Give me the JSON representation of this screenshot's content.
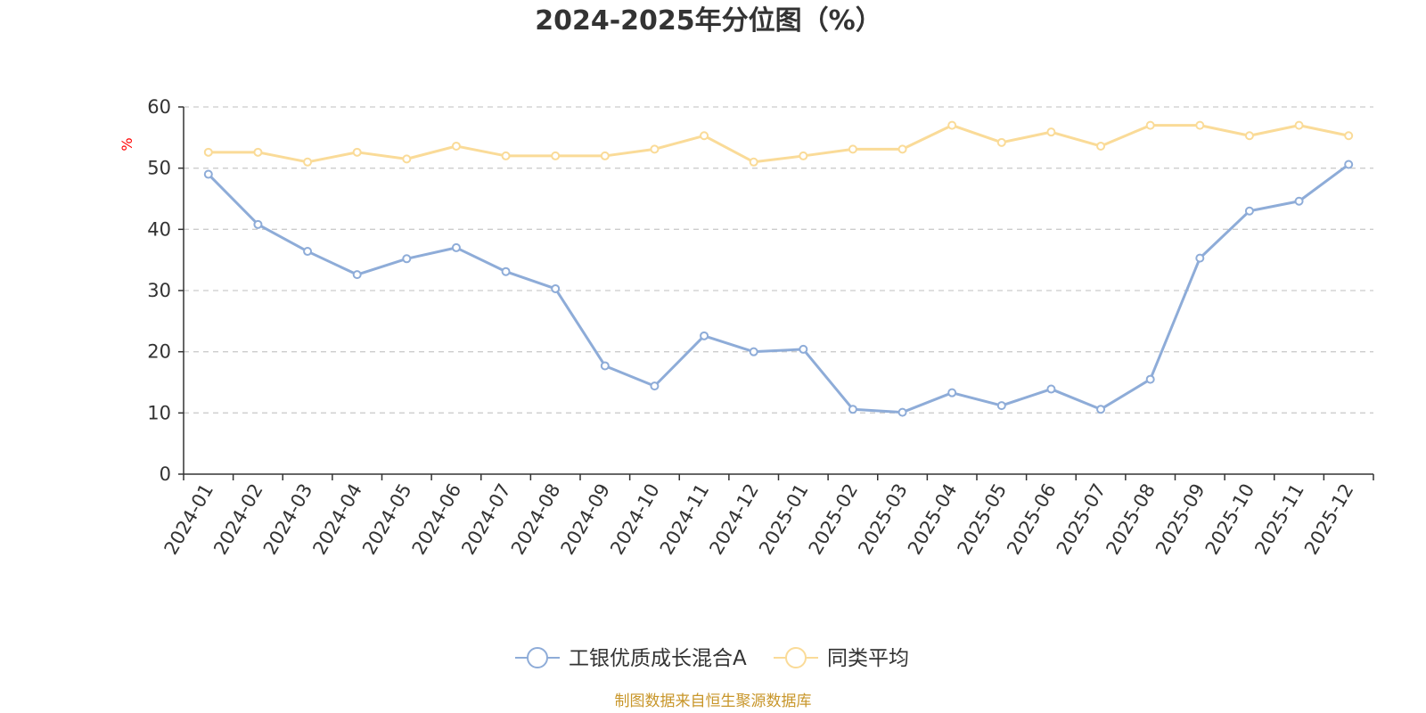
{
  "chart_data": {
    "type": "line",
    "title": "2024-2025年分位图（%）",
    "ylabel": "%",
    "xlabel": "",
    "ylim": [
      0,
      60
    ],
    "yticks": [
      0,
      10,
      20,
      30,
      40,
      50,
      60
    ],
    "grid": true,
    "legend_position": "bottom",
    "categories": [
      "2024-01",
      "2024-02",
      "2024-03",
      "2024-04",
      "2024-05",
      "2024-06",
      "2024-07",
      "2024-08",
      "2024-09",
      "2024-10",
      "2024-11",
      "2024-12",
      "2025-01",
      "2025-02",
      "2025-03",
      "2025-04",
      "2025-05",
      "2025-06",
      "2025-07",
      "2025-08",
      "2025-09",
      "2025-10",
      "2025-11",
      "2025-12"
    ],
    "series": [
      {
        "name": "工银优质成长混合A",
        "color": "#8eacd8",
        "values": [
          49.0,
          40.8,
          36.4,
          32.6,
          35.2,
          37.0,
          33.1,
          30.3,
          17.7,
          14.4,
          22.6,
          20.0,
          20.4,
          10.6,
          10.1,
          13.3,
          11.2,
          13.9,
          10.6,
          15.5,
          35.3,
          43.0,
          44.6,
          50.6
        ]
      },
      {
        "name": "同类平均",
        "color": "#fadb98",
        "values": [
          52.6,
          52.6,
          51.0,
          52.6,
          51.5,
          53.6,
          52.0,
          52.0,
          52.0,
          53.1,
          55.3,
          51.0,
          52.0,
          53.1,
          53.1,
          57.0,
          54.2,
          55.9,
          53.6,
          57.0,
          57.0,
          55.3,
          57.0,
          55.3
        ]
      }
    ]
  },
  "footer": {
    "source": "制图数据来自恒生聚源数据库",
    "source_color": "#c8962a"
  },
  "colors": {
    "axis": "#333333",
    "grid": "#cccccc",
    "unit": "#ff0000"
  }
}
